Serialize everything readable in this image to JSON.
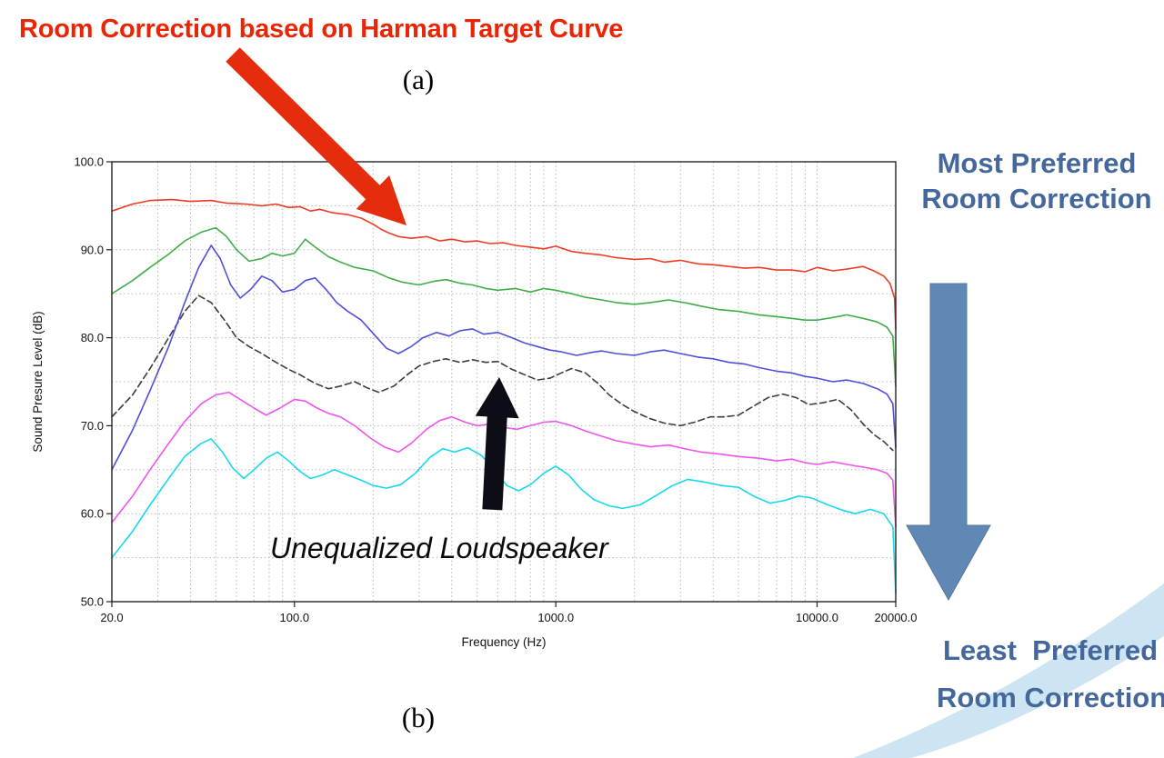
{
  "slide": {
    "background": "#ffffff"
  },
  "annotations": {
    "room_correction_label": "Room Correction based on Harman Target Curve",
    "figure_a_label": "(a)",
    "figure_b_label": "(b)",
    "unequalized_label": "Unequalized Loudspeaker",
    "most_preferred": [
      "Most Preferred",
      "Room Correction"
    ],
    "least_preferred": [
      "Least  Preferred",
      "Room Correction"
    ]
  },
  "colors": {
    "annotation_red": "#ea2506",
    "red_arrow": "#e52c0c",
    "preference_text_blue": "#44679c",
    "big_arrow_blue": "#5f88b5",
    "black_arrow": "#0d0d18",
    "swoosh_light_blue": "#cde5f3"
  },
  "chart_data": {
    "type": "line",
    "title": "",
    "xlabel": "Frequency (Hz)",
    "ylabel": "Sound Presure Level (dB)",
    "x_scale": "log",
    "xlim": [
      20,
      20000
    ],
    "ylim": [
      50,
      100
    ],
    "x_ticks": [
      20,
      100,
      1000,
      10000,
      20000
    ],
    "x_tick_labels": [
      "20.0",
      "100.0",
      "1000.0",
      "10000.0",
      "20000.0"
    ],
    "y_ticks": [
      50,
      60,
      70,
      80,
      90,
      100
    ],
    "y_tick_labels": [
      "50.0",
      "60.0",
      "70.0",
      "80.0",
      "90.0",
      "100.0"
    ],
    "grid": "dotted",
    "legend": "none",
    "series": [
      {
        "name": "cyan",
        "color": "#17d8ec",
        "dash": null,
        "x": [
          20,
          24,
          28,
          33,
          38,
          44,
          48,
          53,
          58,
          64,
          70,
          78,
          86,
          95,
          105,
          115,
          128,
          142,
          160,
          180,
          200,
          225,
          255,
          290,
          330,
          370,
          410,
          460,
          520,
          580,
          650,
          720,
          800,
          900,
          1000,
          1120,
          1250,
          1400,
          1600,
          1800,
          2100,
          2400,
          2800,
          3200,
          3700,
          4300,
          5000,
          5800,
          6600,
          7500,
          8500,
          9500,
          11000,
          12500,
          14000,
          16000,
          18000,
          19500,
          20000
        ],
        "y": [
          55.0,
          58.0,
          61.0,
          64.0,
          66.5,
          68.0,
          68.5,
          67.0,
          65.2,
          64.0,
          65.0,
          66.3,
          67.0,
          66.0,
          64.8,
          64.0,
          64.4,
          65.0,
          64.4,
          63.8,
          63.2,
          62.9,
          63.3,
          64.6,
          66.4,
          67.4,
          67.0,
          67.5,
          66.6,
          65.0,
          63.2,
          62.6,
          63.3,
          64.6,
          65.4,
          64.4,
          62.8,
          61.6,
          60.9,
          60.6,
          61.0,
          62.0,
          63.2,
          63.9,
          63.6,
          63.2,
          63.0,
          61.9,
          61.2,
          61.5,
          62.0,
          61.8,
          61.0,
          60.4,
          60.0,
          60.5,
          60.0,
          58.5,
          51.0
        ]
      },
      {
        "name": "magenta",
        "color": "#ee55ee",
        "dash": null,
        "x": [
          20,
          24,
          28,
          33,
          38,
          44,
          50,
          56,
          62,
          70,
          78,
          88,
          100,
          110,
          122,
          135,
          150,
          170,
          195,
          220,
          250,
          280,
          320,
          360,
          400,
          450,
          500,
          560,
          630,
          710,
          800,
          900,
          1000,
          1150,
          1300,
          1500,
          1700,
          2000,
          2300,
          2700,
          3100,
          3600,
          4200,
          5000,
          6000,
          7000,
          8000,
          9000,
          10000,
          11500,
          13000,
          15000,
          17000,
          18500,
          19500,
          20000
        ],
        "y": [
          59.0,
          62.0,
          65.0,
          68.0,
          70.5,
          72.5,
          73.5,
          73.8,
          73.0,
          72.0,
          71.2,
          72.0,
          73.0,
          72.8,
          72.0,
          71.4,
          71.0,
          70.0,
          68.6,
          67.6,
          67.0,
          68.0,
          69.6,
          70.6,
          71.0,
          70.4,
          70.0,
          70.2,
          69.8,
          69.6,
          70.0,
          70.4,
          70.5,
          70.0,
          69.4,
          68.8,
          68.3,
          67.9,
          67.6,
          67.8,
          67.4,
          67.0,
          66.8,
          66.5,
          66.3,
          66.0,
          66.2,
          65.8,
          65.6,
          65.9,
          65.6,
          65.3,
          65.0,
          64.6,
          63.8,
          58.5
        ]
      },
      {
        "name": "unequalized-loudspeaker",
        "color": "#3c3c3c",
        "dash": "7,4",
        "x": [
          20,
          24,
          28,
          33,
          38,
          43,
          48,
          54,
          60,
          67,
          75,
          85,
          95,
          105,
          120,
          135,
          150,
          170,
          190,
          210,
          240,
          270,
          300,
          340,
          380,
          430,
          480,
          540,
          600,
          680,
          760,
          850,
          950,
          1050,
          1150,
          1300,
          1450,
          1600,
          1800,
          2000,
          2300,
          2600,
          3000,
          3400,
          3900,
          4400,
          5000,
          5700,
          6500,
          7400,
          8300,
          9300,
          10500,
          12000,
          13500,
          15000,
          16500,
          18000,
          19500
        ],
        "y": [
          71.0,
          73.5,
          76.5,
          80.0,
          83.0,
          84.8,
          84.0,
          82.0,
          80.0,
          79.0,
          78.2,
          77.2,
          76.4,
          75.8,
          74.8,
          74.2,
          74.5,
          75.0,
          74.3,
          73.8,
          74.5,
          75.8,
          76.8,
          77.3,
          77.6,
          77.2,
          77.5,
          77.2,
          77.3,
          76.4,
          75.8,
          75.2,
          75.4,
          76.0,
          76.5,
          76.0,
          74.8,
          73.5,
          72.4,
          71.6,
          70.8,
          70.3,
          70.0,
          70.4,
          71.0,
          71.0,
          71.2,
          72.2,
          73.2,
          73.6,
          73.2,
          72.4,
          72.6,
          73.0,
          71.8,
          70.2,
          69.0,
          68.2,
          67.2
        ]
      },
      {
        "name": "blue",
        "color": "#4f4fd8",
        "dash": null,
        "x": [
          20,
          24,
          28,
          33,
          38,
          43,
          48,
          52,
          57,
          62,
          68,
          75,
          82,
          90,
          100,
          110,
          120,
          132,
          145,
          160,
          180,
          200,
          225,
          250,
          280,
          310,
          350,
          390,
          430,
          480,
          530,
          600,
          680,
          760,
          850,
          950,
          1050,
          1200,
          1350,
          1500,
          1700,
          2000,
          2300,
          2600,
          3000,
          3500,
          4000,
          4600,
          5300,
          6000,
          7000,
          8000,
          9000,
          10000,
          11500,
          13000,
          15000,
          17000,
          18500,
          19500,
          20000
        ],
        "y": [
          65.0,
          69.5,
          74.0,
          79.0,
          84.0,
          88.0,
          90.5,
          89.0,
          86.0,
          84.5,
          85.5,
          87.0,
          86.5,
          85.2,
          85.5,
          86.5,
          86.8,
          85.5,
          84.0,
          83.0,
          82.0,
          80.5,
          78.8,
          78.2,
          79.0,
          80.0,
          80.6,
          80.2,
          80.8,
          81.0,
          80.4,
          80.6,
          80.0,
          79.4,
          79.0,
          78.6,
          78.4,
          78.0,
          78.3,
          78.5,
          78.2,
          78.0,
          78.4,
          78.6,
          78.2,
          77.8,
          77.6,
          77.2,
          77.0,
          76.6,
          76.2,
          76.0,
          75.6,
          75.4,
          75.0,
          75.2,
          74.8,
          74.2,
          73.6,
          72.5,
          67.5
        ]
      },
      {
        "name": "green",
        "color": "#3fae47",
        "dash": null,
        "x": [
          20,
          24,
          28,
          33,
          38,
          44,
          50,
          55,
          60,
          67,
          75,
          82,
          90,
          100,
          110,
          120,
          135,
          150,
          170,
          200,
          230,
          260,
          300,
          340,
          380,
          430,
          480,
          540,
          600,
          700,
          800,
          900,
          1000,
          1150,
          1300,
          1500,
          1700,
          2000,
          2300,
          2700,
          3100,
          3600,
          4200,
          5000,
          6000,
          7000,
          8000,
          9000,
          10000,
          11500,
          13000,
          15000,
          17000,
          18500,
          19500,
          20000
        ],
        "y": [
          85.0,
          86.5,
          88.0,
          89.5,
          91.0,
          92.0,
          92.5,
          91.5,
          90.0,
          88.7,
          89.0,
          89.6,
          89.3,
          89.6,
          91.2,
          90.3,
          89.2,
          88.6,
          88.0,
          87.6,
          86.8,
          86.3,
          86.0,
          86.4,
          86.6,
          86.2,
          86.0,
          85.6,
          85.4,
          85.6,
          85.2,
          85.6,
          85.4,
          85.0,
          84.6,
          84.3,
          84.0,
          83.8,
          84.0,
          84.3,
          84.0,
          83.6,
          83.2,
          83.0,
          82.6,
          82.4,
          82.2,
          82.0,
          82.0,
          82.3,
          82.6,
          82.2,
          81.8,
          81.2,
          80.2,
          74.5
        ]
      },
      {
        "name": "red",
        "color": "#ef3b24",
        "dash": null,
        "x": [
          20,
          24,
          28,
          34,
          40,
          48,
          55,
          65,
          75,
          85,
          95,
          105,
          115,
          125,
          140,
          160,
          180,
          200,
          215,
          230,
          250,
          280,
          320,
          360,
          400,
          450,
          500,
          560,
          630,
          700,
          800,
          900,
          1000,
          1150,
          1300,
          1500,
          1700,
          2000,
          2300,
          2600,
          3000,
          3500,
          4000,
          4600,
          5300,
          6000,
          7000,
          8000,
          9000,
          10000,
          11500,
          13000,
          15000,
          16500,
          18000,
          19000,
          19800,
          20000
        ],
        "y": [
          94.4,
          95.2,
          95.6,
          95.7,
          95.5,
          95.6,
          95.3,
          95.2,
          95.0,
          95.2,
          94.8,
          94.9,
          94.4,
          94.6,
          94.2,
          94.0,
          93.6,
          92.9,
          92.3,
          91.9,
          91.5,
          91.3,
          91.5,
          91.0,
          91.2,
          90.9,
          91.0,
          90.7,
          90.8,
          90.5,
          90.3,
          90.1,
          90.4,
          89.8,
          89.6,
          89.4,
          89.1,
          88.9,
          89.0,
          88.6,
          88.8,
          88.4,
          88.3,
          88.1,
          87.9,
          88.0,
          87.7,
          87.7,
          87.5,
          88.0,
          87.6,
          87.8,
          88.1,
          87.6,
          87.0,
          86.2,
          84.5,
          81.0
        ]
      }
    ]
  }
}
